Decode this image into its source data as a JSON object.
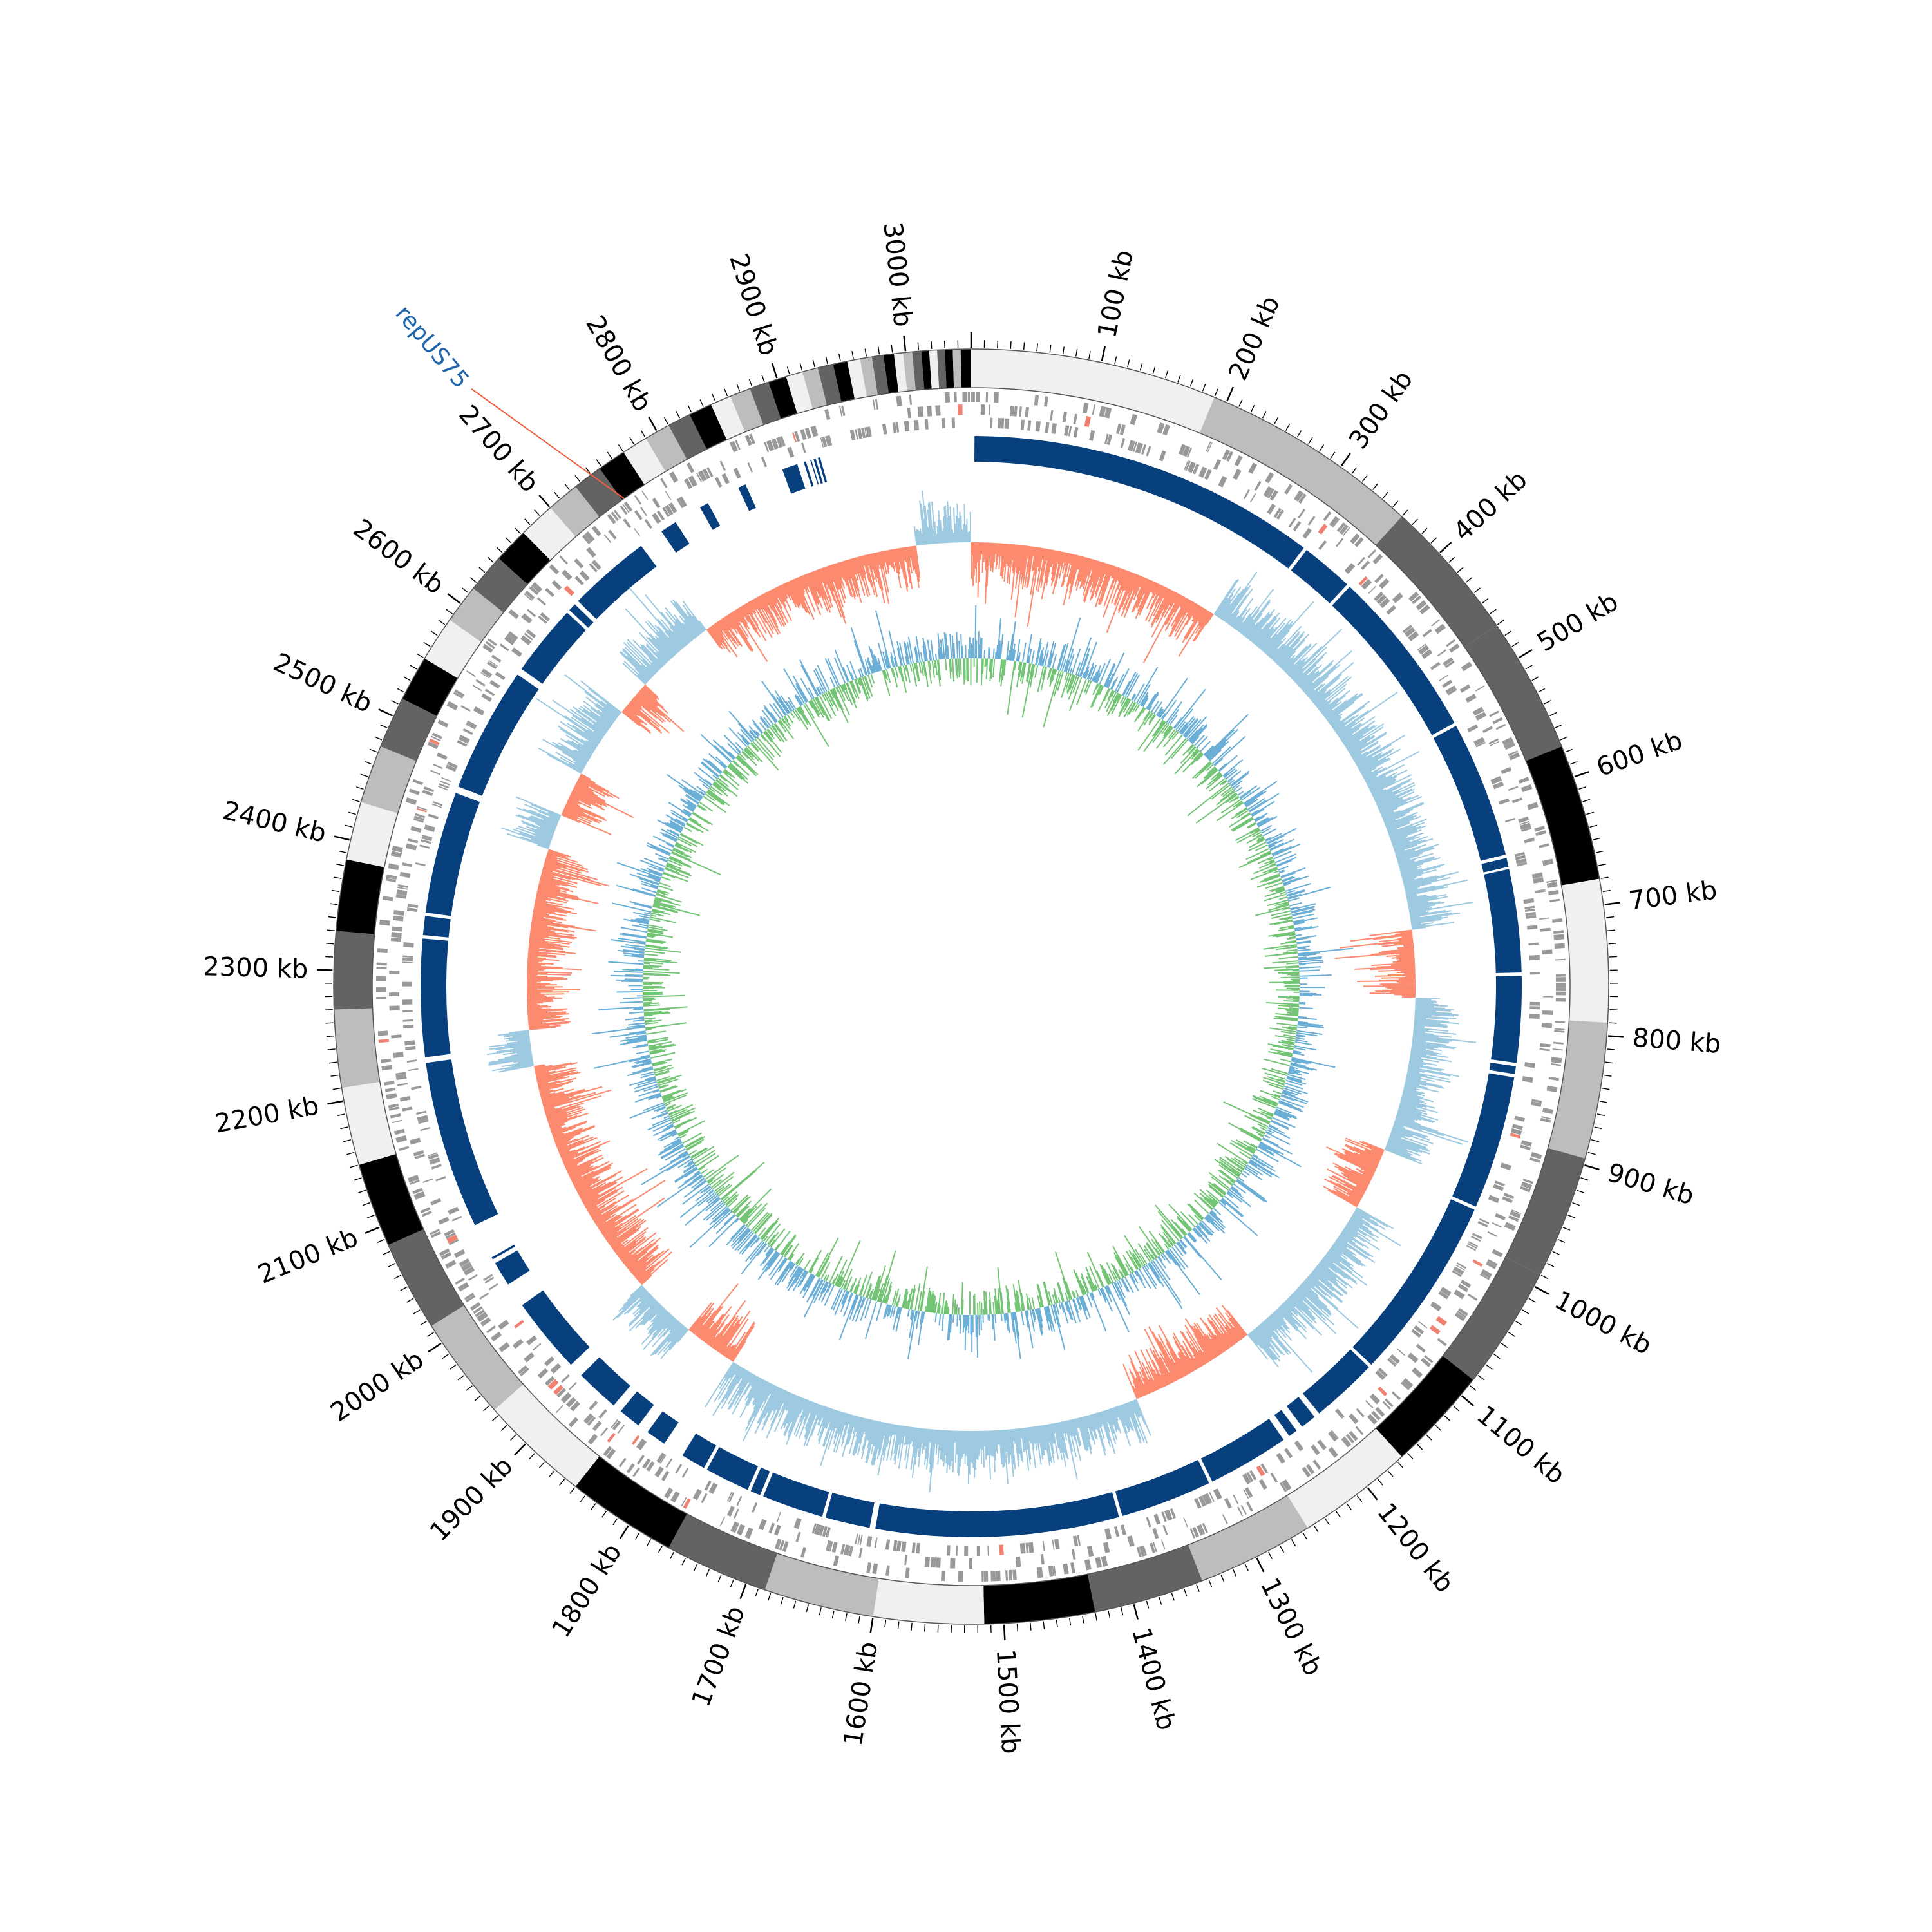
{
  "genome": {
    "length_kb": 3050,
    "label_interval_kb": 100,
    "minor_tick_kb": 10,
    "unit_suffix": " kb"
  },
  "colors": {
    "band_palette": [
      "#f0f0f0",
      "#bdbdbd",
      "#636363",
      "#000000",
      "#bdbdbd",
      "#f0f0f0"
    ],
    "gene_grey": "#999999",
    "gene_red": "#f08070",
    "contig_blue": "#08407e",
    "skew_positive": "#fb8a6e",
    "skew_negative": "#9ecae1",
    "gc_positive": "#74c476",
    "gc_negative": "#6baed6",
    "annotation": "#2166ac",
    "annotation_line": "#f06040"
  },
  "ideogram": {
    "bands_kb": [
      [
        0,
        190,
        0
      ],
      [
        190,
        360,
        1
      ],
      [
        360,
        470,
        2
      ],
      [
        470,
        575,
        2
      ],
      [
        575,
        680,
        3
      ],
      [
        680,
        790,
        5
      ],
      [
        790,
        895,
        1
      ],
      [
        895,
        990,
        2
      ],
      [
        990,
        1085,
        2
      ],
      [
        1085,
        1165,
        3
      ],
      [
        1165,
        1255,
        5
      ],
      [
        1255,
        1345,
        1
      ],
      [
        1345,
        1430,
        2
      ],
      [
        1430,
        1515,
        3
      ],
      [
        1515,
        1600,
        0
      ],
      [
        1600,
        1685,
        1
      ],
      [
        1685,
        1765,
        2
      ],
      [
        1765,
        1850,
        3
      ],
      [
        1850,
        1935,
        0
      ],
      [
        1935,
        2015,
        1
      ],
      [
        2015,
        2085,
        2
      ],
      [
        2085,
        2150,
        3
      ],
      [
        2150,
        2210,
        0
      ],
      [
        2210,
        2270,
        1
      ],
      [
        2270,
        2330,
        2
      ],
      [
        2330,
        2385,
        3
      ],
      [
        2385,
        2430,
        0
      ],
      [
        2430,
        2475,
        1
      ],
      [
        2475,
        2515,
        2
      ],
      [
        2515,
        2550,
        3
      ],
      [
        2550,
        2585,
        0
      ],
      [
        2585,
        2615,
        1
      ],
      [
        2615,
        2645,
        2
      ],
      [
        2645,
        2672,
        3
      ],
      [
        2672,
        2700,
        0
      ],
      [
        2700,
        2725,
        1
      ],
      [
        2725,
        2748,
        2
      ],
      [
        2748,
        2770,
        3
      ],
      [
        2770,
        2790,
        0
      ],
      [
        2790,
        2810,
        1
      ],
      [
        2810,
        2828,
        2
      ],
      [
        2828,
        2846,
        3
      ],
      [
        2846,
        2862,
        0
      ],
      [
        2862,
        2878,
        1
      ],
      [
        2878,
        2893,
        2
      ],
      [
        2893,
        2907,
        3
      ],
      [
        2907,
        2920,
        0
      ],
      [
        2920,
        2932,
        1
      ],
      [
        2932,
        2944,
        2
      ],
      [
        2944,
        2955,
        3
      ],
      [
        2955,
        2965,
        0
      ],
      [
        2965,
        2974,
        1
      ],
      [
        2974,
        2983,
        2
      ],
      [
        2983,
        2991,
        3
      ],
      [
        2991,
        2998,
        0
      ],
      [
        2998,
        3005,
        1
      ],
      [
        3005,
        3012,
        2
      ],
      [
        3012,
        3018,
        3
      ],
      [
        3018,
        3024,
        0
      ],
      [
        3024,
        3030,
        2
      ],
      [
        3030,
        3036,
        3
      ],
      [
        3036,
        3042,
        1
      ],
      [
        3042,
        3050,
        3
      ]
    ]
  },
  "contigs_kb": [
    [
      3,
      315
    ],
    [
      318,
      365
    ],
    [
      368,
      520
    ],
    [
      523,
      645
    ],
    [
      648,
      656
    ],
    [
      658,
      750
    ],
    [
      753,
      830
    ],
    [
      833,
      840
    ],
    [
      843,
      962
    ],
    [
      965,
      1130
    ],
    [
      1133,
      1193
    ],
    [
      1198,
      1212
    ],
    [
      1218,
      1226
    ],
    [
      1232,
      1305
    ],
    [
      1308,
      1390
    ],
    [
      1393,
      1610
    ],
    [
      1615,
      1655
    ],
    [
      1658,
      1713
    ],
    [
      1716,
      1725
    ],
    [
      1728,
      1768
    ],
    [
      1771,
      1793
    ],
    [
      1812,
      1830
    ],
    [
      1840,
      1860
    ],
    [
      1868,
      1907
    ],
    [
      1920,
      1988
    ],
    [
      2010,
      2032
    ],
    [
      2036,
      2038
    ],
    [
      2070,
      2220
    ],
    [
      2225,
      2330
    ],
    [
      2333,
      2350
    ],
    [
      2353,
      2462
    ],
    [
      2468,
      2580
    ],
    [
      2586,
      2650
    ],
    [
      2653,
      2660
    ],
    [
      2664,
      2738
    ],
    [
      2760,
      2775
    ],
    [
      2800,
      2808
    ],
    [
      2838,
      2845
    ],
    [
      2880,
      2894
    ],
    [
      2900,
      2902
    ],
    [
      2906,
      2907
    ],
    [
      2909,
      2911
    ],
    [
      2913,
      2915
    ]
  ],
  "gc_skew_regions_kb": [
    [
      0,
      280,
      1
    ],
    [
      280,
      700,
      -1
    ],
    [
      700,
      775,
      1
    ],
    [
      775,
      945,
      -1
    ],
    [
      945,
      1015,
      1
    ],
    [
      1015,
      1200,
      -1
    ],
    [
      1200,
      1340,
      1
    ],
    [
      1340,
      1800,
      -1
    ],
    [
      1800,
      1860,
      1
    ],
    [
      1860,
      1930,
      -1
    ],
    [
      1930,
      2200,
      1
    ],
    [
      2200,
      2240,
      -1
    ],
    [
      2240,
      2440,
      1
    ],
    [
      2440,
      2480,
      -1
    ],
    [
      2480,
      2530,
      1
    ],
    [
      2530,
      2610,
      -1
    ],
    [
      2610,
      2650,
      1
    ],
    [
      2650,
      2740,
      -1
    ],
    [
      2740,
      2990,
      1
    ],
    [
      2990,
      3050,
      -1
    ]
  ],
  "annotations": [
    {
      "label": "repUS75",
      "position_kb": 2750
    }
  ]
}
